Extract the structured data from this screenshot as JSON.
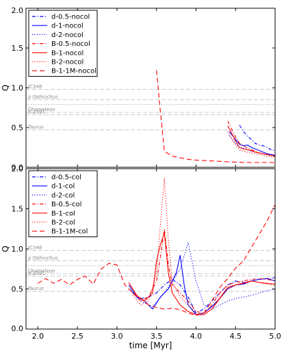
{
  "chart_data": [
    {
      "type": "line",
      "panel": "top",
      "xlim": [
        1.85,
        5.0
      ],
      "ylim": [
        0.0,
        2.0
      ],
      "ylabel": "Q",
      "yticks": [
        "0.0",
        "0.5",
        "1.0",
        "1.5",
        "2.0"
      ],
      "grid": false,
      "legend_position": "top-left",
      "reference_lines": [
        {
          "label": "IC348",
          "y": 0.98,
          "style": "dashed"
        },
        {
          "label": "ρ Ophiuchus",
          "y": 0.85,
          "style": "dashed"
        },
        {
          "label": "",
          "y": 0.79,
          "style": "dotted"
        },
        {
          "label": "Chameleon",
          "y": 0.69,
          "style": "dashed"
        },
        {
          "label": "IC2391",
          "y": 0.66,
          "style": "dashed"
        },
        {
          "label": "Taurus",
          "y": 0.47,
          "style": "dashed"
        }
      ],
      "series": [
        {
          "name": "d-0.5-nocol",
          "color": "#0000ff",
          "style": "dashdot",
          "x": [
            4.55,
            4.6,
            4.65,
            4.7,
            4.75,
            4.8,
            4.85,
            4.9,
            4.95,
            5.0
          ],
          "y": [
            0.53,
            0.45,
            0.39,
            0.35,
            0.3,
            0.28,
            0.27,
            0.25,
            0.22,
            0.21
          ]
        },
        {
          "name": "d-1-nocol",
          "color": "#0000ff",
          "style": "solid",
          "x": [
            4.42,
            4.5,
            4.55,
            4.6,
            4.65,
            4.7,
            4.75,
            4.8,
            4.85,
            4.9,
            4.95,
            5.0
          ],
          "y": [
            0.45,
            0.35,
            0.29,
            0.27,
            0.28,
            0.25,
            0.23,
            0.21,
            0.19,
            0.17,
            0.16,
            0.15
          ]
        },
        {
          "name": "d-2-nocol",
          "color": "#0000ff",
          "style": "dotted",
          "x": [
            4.42,
            4.5,
            4.55,
            4.6,
            4.65,
            4.7,
            4.75,
            4.8,
            4.85,
            4.9,
            4.95,
            5.0
          ],
          "y": [
            0.4,
            0.3,
            0.25,
            0.24,
            0.22,
            0.2,
            0.19,
            0.18,
            0.17,
            0.16,
            0.15,
            0.14
          ]
        },
        {
          "name": "B-0.5-nocol",
          "color": "#ff0000",
          "style": "dashdot",
          "x": [
            4.4,
            4.45,
            4.5,
            4.55,
            4.6,
            4.65,
            4.7,
            4.75,
            4.8,
            4.85,
            4.9,
            4.95,
            5.0
          ],
          "y": [
            0.58,
            0.48,
            0.38,
            0.3,
            0.27,
            0.24,
            0.22,
            0.2,
            0.18,
            0.17,
            0.16,
            0.15,
            0.14
          ]
        },
        {
          "name": "B-1-nocol",
          "color": "#ff0000",
          "style": "solid",
          "x": [
            4.4,
            4.45,
            4.5,
            4.55,
            4.6,
            4.65,
            4.7,
            4.75,
            4.8,
            4.85,
            4.9,
            4.95,
            5.0
          ],
          "y": [
            0.52,
            0.43,
            0.33,
            0.25,
            0.23,
            0.22,
            0.21,
            0.19,
            0.18,
            0.17,
            0.16,
            0.15,
            0.14
          ]
        },
        {
          "name": "B-2-nocol",
          "color": "#ff0000",
          "style": "dotted",
          "x": [
            4.4,
            4.45,
            4.5,
            4.55,
            4.6,
            4.65,
            4.7,
            4.75,
            4.8,
            4.85,
            4.9,
            4.95,
            5.0
          ],
          "y": [
            0.45,
            0.36,
            0.28,
            0.22,
            0.2,
            0.19,
            0.18,
            0.17,
            0.16,
            0.15,
            0.14,
            0.13,
            0.13
          ]
        },
        {
          "name": "B-1-1M-nocol",
          "color": "#ff0000",
          "style": "dashed",
          "x": [
            3.5,
            3.55,
            3.6,
            3.7,
            3.8,
            3.9,
            4.0,
            4.2,
            4.4,
            4.6,
            4.8,
            5.0
          ],
          "y": [
            1.22,
            0.7,
            0.2,
            0.14,
            0.12,
            0.1,
            0.09,
            0.08,
            0.07,
            0.06,
            0.06,
            0.06
          ]
        }
      ]
    },
    {
      "type": "line",
      "panel": "bottom",
      "xlim": [
        1.85,
        5.0
      ],
      "ylim": [
        0.0,
        2.0
      ],
      "xlabel": "time [Myr]",
      "ylabel": "Q",
      "xticks": [
        "2.0",
        "2.5",
        "3.0",
        "3.5",
        "4.0",
        "4.5",
        "5.0"
      ],
      "yticks": [
        "0.0",
        "0.5",
        "1.0",
        "1.5",
        "2.0"
      ],
      "grid": false,
      "legend_position": "top-left",
      "reference_lines": [
        {
          "label": "IC348",
          "y": 0.98,
          "style": "dashed"
        },
        {
          "label": "ρ Ophiuchus",
          "y": 0.85,
          "style": "dashed"
        },
        {
          "label": "",
          "y": 0.79,
          "style": "dotted"
        },
        {
          "label": "Chameleon",
          "y": 0.69,
          "style": "dashed"
        },
        {
          "label": "IC2391",
          "y": 0.66,
          "style": "dashed"
        },
        {
          "label": "Taurus",
          "y": 0.47,
          "style": "dashed"
        }
      ],
      "series": [
        {
          "name": "d-0.5-col",
          "color": "#0000ff",
          "style": "dashdot",
          "x": [
            3.15,
            3.3,
            3.4,
            3.5,
            3.6,
            3.7,
            3.8,
            3.9,
            4.0,
            4.1,
            4.2,
            4.3,
            4.4,
            4.5,
            4.6,
            4.7,
            4.8,
            4.9,
            5.0
          ],
          "y": [
            0.5,
            0.38,
            0.4,
            0.45,
            0.55,
            0.62,
            0.55,
            0.4,
            0.2,
            0.25,
            0.35,
            0.45,
            0.55,
            0.6,
            0.58,
            0.6,
            0.62,
            0.63,
            0.64
          ]
        },
        {
          "name": "d-1-col",
          "color": "#0000ff",
          "style": "solid",
          "x": [
            3.15,
            3.25,
            3.35,
            3.45,
            3.55,
            3.65,
            3.75,
            3.8,
            3.85,
            3.9,
            4.0,
            4.1,
            4.2,
            4.3,
            4.4,
            4.5,
            4.6,
            4.7,
            4.8,
            4.9,
            5.0
          ],
          "y": [
            0.55,
            0.4,
            0.35,
            0.25,
            0.4,
            0.5,
            0.7,
            0.92,
            0.55,
            0.3,
            0.18,
            0.2,
            0.28,
            0.38,
            0.5,
            0.55,
            0.56,
            0.6,
            0.62,
            0.63,
            0.6
          ]
        },
        {
          "name": "d-2-col",
          "color": "#0000ff",
          "style": "dotted",
          "x": [
            3.15,
            3.3,
            3.45,
            3.6,
            3.7,
            3.8,
            3.9,
            4.0,
            4.1,
            4.2,
            4.3,
            4.4,
            4.5,
            4.6,
            4.7,
            4.8,
            4.9,
            5.0
          ],
          "y": [
            0.5,
            0.35,
            0.28,
            0.45,
            0.6,
            0.75,
            1.08,
            0.6,
            0.3,
            0.25,
            0.3,
            0.35,
            0.38,
            0.4,
            0.42,
            0.45,
            0.48,
            0.5
          ]
        },
        {
          "name": "B-0.5-col",
          "color": "#ff0000",
          "style": "dashdot",
          "x": [
            3.2,
            3.3,
            3.4,
            3.5,
            3.55,
            3.6,
            3.65,
            3.7,
            3.8,
            3.9,
            4.0,
            4.1,
            4.2,
            4.3,
            4.4,
            4.5,
            4.6,
            4.7,
            4.8,
            4.9,
            5.0
          ],
          "y": [
            0.45,
            0.35,
            0.4,
            0.6,
            0.9,
            1.25,
            0.8,
            0.55,
            0.45,
            0.35,
            0.22,
            0.2,
            0.3,
            0.45,
            0.55,
            0.58,
            0.6,
            0.62,
            0.63,
            0.62,
            0.6
          ]
        },
        {
          "name": "B-1-col",
          "color": "#ff0000",
          "style": "solid",
          "x": [
            3.15,
            3.25,
            3.35,
            3.45,
            3.5,
            3.55,
            3.6,
            3.65,
            3.7,
            3.8,
            3.9,
            4.0,
            4.1,
            4.2,
            4.3,
            4.4,
            4.5,
            4.6,
            4.7,
            4.8,
            4.9,
            5.0
          ],
          "y": [
            0.58,
            0.42,
            0.35,
            0.45,
            0.85,
            1.05,
            1.2,
            0.7,
            0.45,
            0.3,
            0.22,
            0.18,
            0.18,
            0.25,
            0.38,
            0.52,
            0.55,
            0.57,
            0.6,
            0.58,
            0.57,
            0.56
          ]
        },
        {
          "name": "B-2-col",
          "color": "#ff0000",
          "style": "dotted",
          "x": [
            3.2,
            3.3,
            3.4,
            3.5,
            3.55,
            3.6,
            3.65,
            3.7,
            3.8,
            3.9,
            4.0,
            4.1,
            4.2,
            4.3,
            4.4,
            4.5,
            4.6,
            4.7,
            4.8,
            4.9,
            5.0
          ],
          "y": [
            0.42,
            0.3,
            0.35,
            0.7,
            1.3,
            1.88,
            1.1,
            0.6,
            0.4,
            0.3,
            0.2,
            0.18,
            0.25,
            0.4,
            0.5,
            0.55,
            0.58,
            0.6,
            0.58,
            0.56,
            0.55
          ]
        },
        {
          "name": "B-1-1M-col",
          "color": "#ff0000",
          "style": "dashed",
          "x": [
            2.0,
            2.1,
            2.2,
            2.3,
            2.4,
            2.5,
            2.6,
            2.7,
            2.8,
            2.9,
            3.0,
            3.1,
            3.2,
            3.3,
            3.4,
            3.5,
            3.6,
            3.7,
            3.8,
            3.9,
            4.0,
            4.1,
            4.2,
            4.3,
            4.4,
            4.5,
            4.6,
            4.7,
            4.8,
            4.9,
            5.0
          ],
          "y": [
            0.57,
            0.63,
            0.57,
            0.62,
            0.55,
            0.62,
            0.66,
            0.56,
            0.75,
            0.82,
            0.8,
            0.55,
            0.45,
            0.38,
            0.3,
            0.27,
            0.25,
            0.26,
            0.24,
            0.2,
            0.17,
            0.2,
            0.35,
            0.52,
            0.63,
            0.76,
            0.85,
            1.02,
            1.18,
            1.35,
            1.55
          ]
        }
      ]
    }
  ]
}
